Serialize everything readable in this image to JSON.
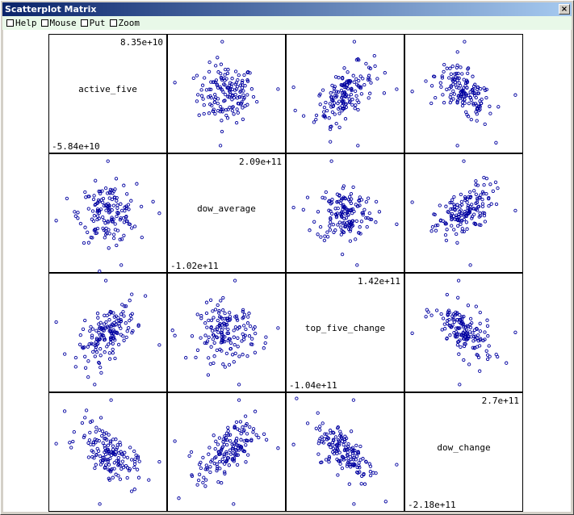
{
  "window": {
    "title": "Scatterplot Matrix",
    "close_glyph": "×"
  },
  "menu": {
    "items": [
      {
        "label": "Help",
        "checked": false
      },
      {
        "label": "Mouse",
        "checked": false
      },
      {
        "label": "Put",
        "checked": false
      },
      {
        "label": "Zoom",
        "checked": false
      }
    ]
  },
  "colors": {
    "point": "#0000a0",
    "title_bar": "#0a246a",
    "menu_bg": "#e8f8e8"
  },
  "chart_data": {
    "type": "scatter",
    "variables": [
      "dow_change",
      "top_five_change",
      "dow_average",
      "active_five"
    ],
    "order": "top-right to bottom-left along the anti-diagonal",
    "ranges": {
      "dow_change": {
        "max": "2.7e+11",
        "min": "-2.18e+11"
      },
      "top_five_change": {
        "max": "1.42e+11",
        "min": "-1.04e+11"
      },
      "dow_average": {
        "max": "2.09e+11",
        "min": "-1.02e+11"
      },
      "active_five": {
        "max": "8.35e+10",
        "min": "-5.84e+10"
      }
    },
    "diagonal": [
      {
        "name": "dow_change",
        "max": "2.7e+11",
        "min": "-2.18e+11"
      },
      {
        "name": "top_five_change",
        "max": "1.42e+11",
        "min": "-1.04e+11"
      },
      {
        "name": "dow_average",
        "max": "2.09e+11",
        "min": "-1.02e+11"
      },
      {
        "name": "active_five",
        "max": "8.35e+10",
        "min": "-5.84e+10"
      }
    ],
    "correlations": {
      "dow_change~top_five_change": -0.6,
      "dow_change~dow_average": 0.6,
      "dow_change~active_five": -0.6,
      "top_five_change~dow_average": 0.0,
      "top_five_change~active_five": 0.6,
      "dow_average~active_five": 0.0
    },
    "n_points_per_panel": 150
  }
}
